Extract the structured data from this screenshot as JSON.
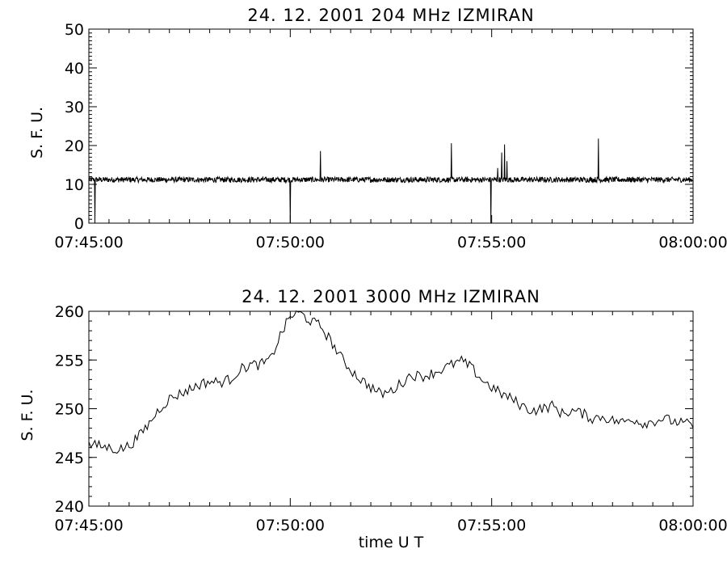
{
  "chart_data": [
    {
      "type": "line",
      "title": "24.  12.  2001    204 MHz    IZMIRAN",
      "ylabel": "S. F. U.",
      "xlabel": "",
      "x_tick_labels": [
        "07:45:00",
        "07:50:00",
        "07:55:00",
        "08:00:00"
      ],
      "x_range_minutes": [
        0,
        15
      ],
      "ylim": [
        0,
        50
      ],
      "y_ticks": [
        0,
        10,
        20,
        30,
        40,
        50
      ],
      "baseline": 11.2,
      "noise_amplitude": 0.7,
      "spikes": [
        {
          "t": 0.15,
          "value": 0
        },
        {
          "t": 5.0,
          "value": 0
        },
        {
          "t": 5.75,
          "value": 18.6
        },
        {
          "t": 9.0,
          "value": 20.6
        },
        {
          "t": 9.98,
          "value": 0
        },
        {
          "t": 10.15,
          "value": 14.2
        },
        {
          "t": 10.25,
          "value": 18.2
        },
        {
          "t": 10.32,
          "value": 20.3
        },
        {
          "t": 10.38,
          "value": 16.0
        },
        {
          "t": 12.65,
          "value": 21.8
        }
      ]
    },
    {
      "type": "line",
      "title": "24.  12.  2001    3000 MHz    IZMIRAN",
      "ylabel": "S. F. U.",
      "xlabel": "time   U T",
      "x_tick_labels": [
        "07:45:00",
        "07:50:00",
        "07:55:00",
        "08:00:00"
      ],
      "x_range_minutes": [
        0,
        15
      ],
      "ylim": [
        240,
        260
      ],
      "y_ticks": [
        240,
        245,
        250,
        255,
        260
      ],
      "x": [
        0,
        0.25,
        0.5,
        0.75,
        1.0,
        1.25,
        1.5,
        1.75,
        2.0,
        2.25,
        2.5,
        2.75,
        3.0,
        3.25,
        3.5,
        3.75,
        4.0,
        4.25,
        4.5,
        4.75,
        5.0,
        5.25,
        5.5,
        5.75,
        6.0,
        6.25,
        6.5,
        6.75,
        7.0,
        7.25,
        7.5,
        7.75,
        8.0,
        8.25,
        8.5,
        8.75,
        9.0,
        9.25,
        9.5,
        9.75,
        10.0,
        10.25,
        10.5,
        10.75,
        11.0,
        11.25,
        11.5,
        11.75,
        12.0,
        12.25,
        12.5,
        12.75,
        13.0,
        13.25,
        13.5,
        13.75,
        14.0,
        14.25,
        14.5,
        14.75,
        15.0
      ],
      "values": [
        246.3,
        246.2,
        246.0,
        245.8,
        246.2,
        247.2,
        248.5,
        250.0,
        251.0,
        251.5,
        252.0,
        252.5,
        252.8,
        252.7,
        253.0,
        254.0,
        254.5,
        254.5,
        255.0,
        257.5,
        259.5,
        259.8,
        259.0,
        258.5,
        257.0,
        255.3,
        254.0,
        253.0,
        252.2,
        251.5,
        251.8,
        252.6,
        253.5,
        253.3,
        253.6,
        254.0,
        254.5,
        254.9,
        254.2,
        253.0,
        252.2,
        251.5,
        251.0,
        250.3,
        249.8,
        250.0,
        250.3,
        249.5,
        249.8,
        249.5,
        249.0,
        249.2,
        248.8,
        248.6,
        249.0,
        248.5,
        248.7,
        249.0,
        248.7,
        248.5,
        248.3
      ]
    }
  ]
}
